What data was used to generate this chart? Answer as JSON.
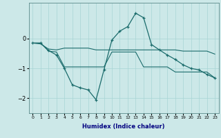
{
  "xlabel": "Humidex (Indice chaleur)",
  "background_color": "#cce8e8",
  "line_color": "#1a6b6b",
  "x_values": [
    0,
    1,
    2,
    3,
    4,
    5,
    6,
    7,
    8,
    9,
    10,
    11,
    12,
    13,
    14,
    15,
    16,
    17,
    18,
    19,
    20,
    21,
    22,
    23
  ],
  "line1_main": [
    -0.15,
    -0.15,
    -0.4,
    -0.55,
    -1.0,
    -1.55,
    -1.65,
    -1.72,
    -2.05,
    -1.05,
    -0.05,
    0.25,
    0.4,
    0.85,
    0.7,
    -0.2,
    -0.38,
    -0.55,
    -0.7,
    -0.88,
    -1.0,
    -1.05,
    -1.2,
    -1.32
  ],
  "line2_upper": [
    -0.15,
    -0.18,
    -0.35,
    -0.38,
    -0.32,
    -0.32,
    -0.32,
    -0.32,
    -0.38,
    -0.38,
    -0.38,
    -0.38,
    -0.38,
    -0.38,
    -0.38,
    -0.38,
    -0.38,
    -0.38,
    -0.38,
    -0.42,
    -0.42,
    -0.42,
    -0.42,
    -0.52
  ],
  "line3_lower": [
    -0.15,
    -0.15,
    -0.42,
    -0.45,
    -0.95,
    -0.95,
    -0.95,
    -0.95,
    -0.95,
    -0.95,
    -0.45,
    -0.45,
    -0.45,
    -0.45,
    -0.95,
    -0.95,
    -0.95,
    -0.95,
    -1.12,
    -1.12,
    -1.12,
    -1.12,
    -1.12,
    -1.32
  ],
  "ylim": [
    -2.5,
    1.2
  ],
  "xlim": [
    -0.5,
    23.5
  ],
  "yticks": [
    -2,
    -1,
    0
  ],
  "xticks": [
    0,
    1,
    2,
    3,
    4,
    5,
    6,
    7,
    8,
    9,
    10,
    11,
    12,
    13,
    14,
    15,
    16,
    17,
    18,
    19,
    20,
    21,
    22,
    23
  ]
}
